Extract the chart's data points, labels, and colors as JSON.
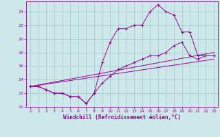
{
  "title": "",
  "xlabel": "Windchill (Refroidissement éolien,°C)",
  "bg_color": "#cce8e8",
  "grid_color": "#aacccc",
  "line_color": "#990099",
  "xlim": [
    -0.5,
    23.5
  ],
  "ylim": [
    10,
    25.5
  ],
  "yticks": [
    10,
    12,
    14,
    16,
    18,
    20,
    22,
    24
  ],
  "xticks": [
    0,
    1,
    2,
    3,
    4,
    5,
    6,
    7,
    8,
    9,
    10,
    11,
    12,
    13,
    14,
    15,
    16,
    17,
    18,
    19,
    20,
    21,
    22,
    23
  ],
  "line1_x": [
    0,
    1,
    2,
    3,
    4,
    5,
    6,
    7,
    8,
    9,
    10,
    11,
    12,
    13,
    14,
    15,
    16,
    17,
    18,
    19,
    20,
    21,
    22,
    23
  ],
  "line1_y": [
    13,
    13,
    12.5,
    12,
    12,
    11.5,
    11.5,
    10.5,
    12,
    16.5,
    19.5,
    21.5,
    21.5,
    22,
    22,
    24,
    25,
    24,
    23.5,
    21,
    21,
    17.5,
    17.5,
    17.5
  ],
  "line2_x": [
    0,
    1,
    2,
    3,
    4,
    5,
    6,
    7,
    8,
    9,
    10,
    11,
    12,
    13,
    14,
    15,
    16,
    17,
    18,
    19,
    20,
    21,
    22,
    23
  ],
  "line2_y": [
    13,
    13,
    12.5,
    12,
    12,
    11.5,
    11.5,
    10.5,
    12,
    13.5,
    14.5,
    15.5,
    16,
    16.5,
    17,
    17.5,
    17.5,
    18,
    19,
    19.5,
    17.5,
    17,
    17.5,
    17.5
  ],
  "line3_x": [
    0,
    23
  ],
  "line3_y": [
    13,
    18
  ],
  "line4_x": [
    0,
    23
  ],
  "line4_y": [
    13,
    17
  ]
}
